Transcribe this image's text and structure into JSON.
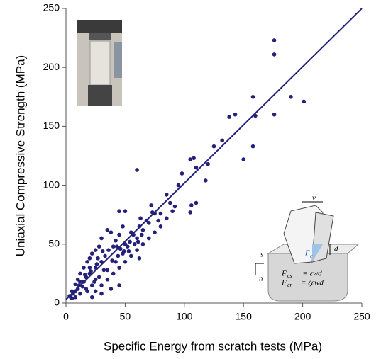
{
  "chart_data": {
    "type": "scatter",
    "xlabel": "Specific Energy from scratch tests (MPa)",
    "ylabel": "Uniaxial Compressive Strength (MPa)",
    "xlim": [
      0,
      250
    ],
    "ylim": [
      0,
      250
    ],
    "xticks": [
      0,
      50,
      100,
      150,
      200,
      250
    ],
    "yticks": [
      0,
      50,
      100,
      150,
      200,
      250
    ],
    "series": [
      {
        "color": "#24217a",
        "x": [
          60,
          176,
          176,
          176,
          190,
          201,
          158,
          160,
          158,
          150,
          143,
          138,
          132,
          125,
          120,
          118,
          110,
          108,
          105,
          106,
          105,
          110,
          98,
          95,
          92,
          88,
          85,
          90,
          85,
          80,
          75,
          72,
          68,
          65,
          62,
          60,
          55,
          50,
          45,
          48,
          45,
          42,
          40,
          38,
          35,
          30,
          28,
          25,
          22,
          20,
          18,
          15,
          12,
          10,
          8,
          5,
          3,
          40,
          35,
          30,
          45,
          50,
          55,
          60,
          65,
          70,
          33,
          25,
          20,
          15,
          10,
          18,
          22,
          28,
          35,
          42,
          48,
          52,
          58,
          75,
          80,
          62,
          45,
          38,
          12,
          8,
          5,
          25,
          30,
          27,
          17,
          14,
          20,
          24,
          32,
          36,
          44,
          50,
          46,
          54,
          57,
          63,
          70,
          64,
          73,
          78,
          25,
          30,
          22,
          17,
          12,
          8,
          6,
          4,
          11,
          16,
          21,
          26,
          31,
          39,
          43,
          49,
          53,
          61
        ],
        "y": [
          113,
          223,
          211,
          160,
          175,
          171,
          175,
          159,
          133,
          122,
          160,
          158,
          138,
          133,
          118,
          104,
          115,
          123,
          122,
          83,
          77,
          85,
          110,
          100,
          82,
          85,
          92,
          78,
          72,
          76,
          76,
          83,
          70,
          62,
          65,
          55,
          60,
          78,
          78,
          65,
          58,
          53,
          48,
          60,
          62,
          55,
          48,
          45,
          42,
          38,
          35,
          30,
          25,
          20,
          16,
          10,
          6,
          25,
          20,
          15,
          30,
          35,
          40,
          45,
          50,
          55,
          40,
          30,
          25,
          18,
          12,
          10,
          15,
          22,
          28,
          35,
          42,
          48,
          50,
          60,
          65,
          38,
          15,
          12,
          8,
          5,
          4,
          20,
          35,
          38,
          22,
          14,
          30,
          18,
          28,
          45,
          40,
          50,
          46,
          52,
          58,
          72,
          68,
          58,
          77,
          70,
          10,
          8,
          5,
          12,
          18,
          10,
          8,
          5,
          15,
          24,
          27,
          33,
          44,
          36,
          48,
          44,
          44,
          52
        ]
      }
    ],
    "lines": [
      {
        "color": "#24217a",
        "x": [
          0,
          250
        ],
        "y": [
          3,
          250
        ]
      }
    ],
    "annotations": [
      "v",
      "s",
      "n",
      "d",
      "F",
      "c",
      "F",
      "cs",
      "= εwd",
      "F",
      "cn",
      "= ζεwd"
    ]
  }
}
